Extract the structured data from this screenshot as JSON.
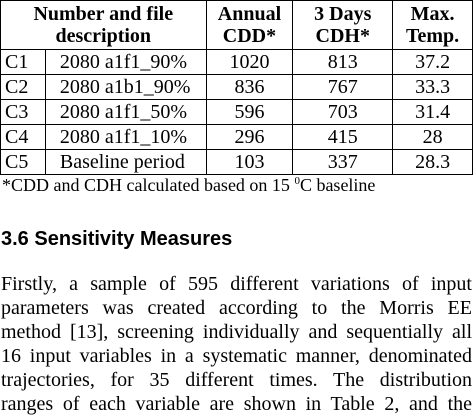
{
  "table": {
    "headers": [
      "Number and file description",
      "Annual CDD*",
      "3 Days CDH*",
      "Max. Temp."
    ],
    "header_lines": {
      "desc": [
        "Number and file",
        "description"
      ],
      "cdd": [
        "Annual",
        "CDD*"
      ],
      "cdh": [
        "3 Days",
        "CDH*"
      ],
      "temp": [
        "Max.",
        "Temp."
      ]
    },
    "rows": [
      {
        "id": "C1",
        "description": "2080 a1f1_90%",
        "annual_cdd": "1020",
        "cdh_3days": "813",
        "max_temp": "37.2"
      },
      {
        "id": "C2",
        "description": "2080 a1b1_90%",
        "annual_cdd": "836",
        "cdh_3days": "767",
        "max_temp": "33.3"
      },
      {
        "id": "C3",
        "description": "2080 a1f1_50%",
        "annual_cdd": "596",
        "cdh_3days": "703",
        "max_temp": "31.4"
      },
      {
        "id": "C4",
        "description": "2080 a1f1_10%",
        "annual_cdd": "296",
        "cdh_3days": "415",
        "max_temp": "28"
      },
      {
        "id": "C5",
        "description": "Baseline period",
        "annual_cdd": "103",
        "cdh_3days": "337",
        "max_temp": "28.3"
      }
    ]
  },
  "footnote": {
    "text_before": "*CDD and CDH calculated based on 15 ",
    "superscript": "0",
    "text_after": "C baseline"
  },
  "section": {
    "heading": "3.6 Sensitivity Measures"
  },
  "paragraph": {
    "lines": [
      "Firstly, a sample of 595 different variations of input",
      "parameters was created according to the Morris EE",
      "method [13], screening individually and sequentially all",
      "16 input variables in a systematic manner, denominated",
      "trajectories, for 35 different times. The  distribution",
      "ranges of each variable are shown in Table 2, and the"
    ]
  }
}
